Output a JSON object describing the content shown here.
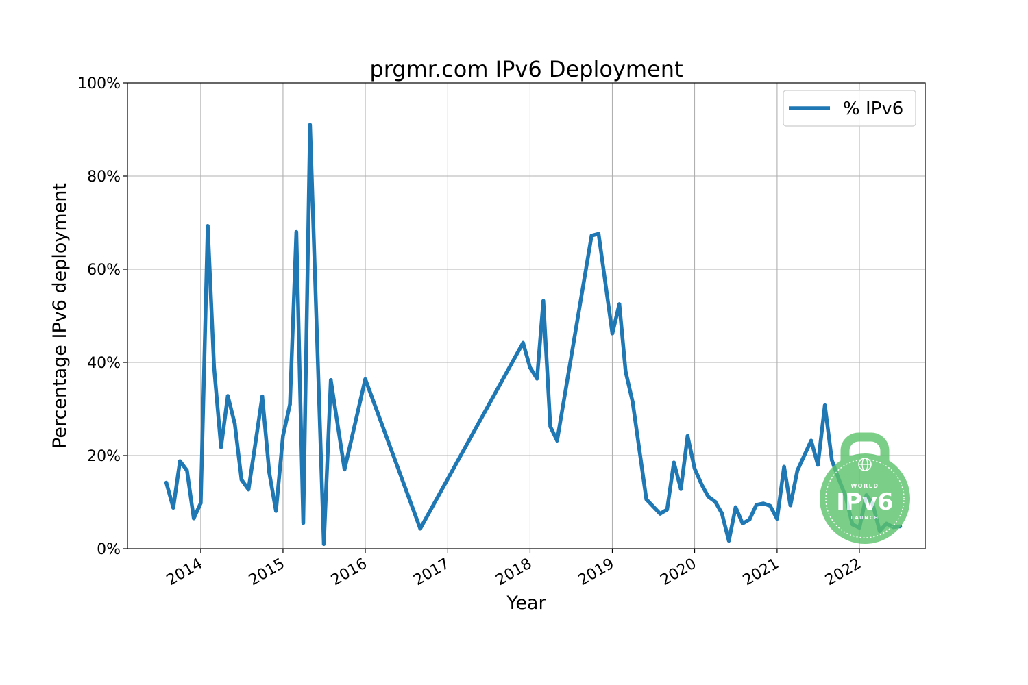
{
  "chart_data": {
    "type": "line",
    "title": "prgmr.com IPv6 Deployment",
    "xlabel": "Year",
    "ylabel": "Percentage IPv6 deployment",
    "x_type": "date",
    "xlim": [
      "2013-02-10",
      "2022-10-20"
    ],
    "ylim": [
      0,
      100
    ],
    "y_unit": "%",
    "x_ticks": [
      "2014-01-01",
      "2015-01-01",
      "2016-01-01",
      "2017-01-01",
      "2018-01-01",
      "2019-01-01",
      "2020-01-01",
      "2021-01-01",
      "2022-01-01"
    ],
    "x_tick_labels": [
      "2014",
      "2015",
      "2016",
      "2017",
      "2018",
      "2019",
      "2020",
      "2021",
      "2022"
    ],
    "y_ticks": [
      0,
      20,
      40,
      60,
      80,
      100
    ],
    "y_tick_labels": [
      "0%",
      "20%",
      "40%",
      "60%",
      "80%",
      "100%"
    ],
    "grid": true,
    "legend_position": "top-right",
    "series": [
      {
        "name": "% IPv6",
        "color": "#1f77b4",
        "x": [
          "2013-08-01",
          "2013-09-01",
          "2013-10-01",
          "2013-11-01",
          "2013-12-01",
          "2014-01-01",
          "2014-02-01",
          "2014-03-01",
          "2014-04-01",
          "2014-05-01",
          "2014-06-01",
          "2014-07-01",
          "2014-08-01",
          "2014-09-01",
          "2014-10-01",
          "2014-11-01",
          "2014-12-01",
          "2015-01-01",
          "2015-02-01",
          "2015-03-01",
          "2015-04-01",
          "2015-05-01",
          "2015-07-01",
          "2015-08-01",
          "2015-10-01",
          "2016-01-01",
          "2016-09-01",
          "2017-12-01",
          "2018-01-01",
          "2018-02-01",
          "2018-03-01",
          "2018-04-01",
          "2018-05-01",
          "2018-10-01",
          "2018-11-01",
          "2019-01-01",
          "2019-02-01",
          "2019-03-01",
          "2019-04-01",
          "2019-06-01",
          "2019-08-01",
          "2019-09-01",
          "2019-10-01",
          "2019-11-01",
          "2019-12-01",
          "2020-01-01",
          "2020-02-01",
          "2020-03-01",
          "2020-04-01",
          "2020-05-01",
          "2020-06-01",
          "2020-07-01",
          "2020-08-01",
          "2020-09-01",
          "2020-10-01",
          "2020-11-01",
          "2020-12-01",
          "2021-01-01",
          "2021-02-01",
          "2021-03-01",
          "2021-04-01",
          "2021-06-01",
          "2021-07-01",
          "2021-08-01",
          "2021-09-01",
          "2021-10-01",
          "2021-11-01",
          "2021-12-01",
          "2022-01-01",
          "2022-02-01",
          "2022-03-01",
          "2022-04-01",
          "2022-05-01",
          "2022-06-01",
          "2022-07-01"
        ],
        "y": [
          14.2,
          8.8,
          18.8,
          16.8,
          6.5,
          9.8,
          69.3,
          39,
          21.8,
          32.8,
          26.8,
          14.8,
          12.7,
          22.8,
          32.7,
          16.3,
          8.1,
          24.2,
          31,
          68,
          5.5,
          91,
          1,
          36.2,
          17,
          36.4,
          4.3,
          44.2,
          38.9,
          36.5,
          53.2,
          26.2,
          23.2,
          67.2,
          67.6,
          46.2,
          52.5,
          38,
          31.5,
          10.6,
          7.5,
          8.4,
          18.5,
          12.8,
          24.2,
          17.2,
          13.8,
          11.2,
          10.1,
          7.6,
          1.7,
          8.9,
          5.4,
          6.3,
          9.4,
          9.7,
          9.2,
          6.4,
          17.6,
          9.3,
          16.8,
          23.2,
          18,
          30.8,
          19,
          15,
          11.2,
          5.2,
          4.5,
          11.5,
          9.6,
          3.8,
          5.4,
          4.6,
          4.8
        ]
      }
    ]
  },
  "watermark": {
    "name": "world-ipv6-launch-logo",
    "color": "#5fc46d",
    "top_text": "WORLD",
    "main_text": "IPv6",
    "bottom_text": "LAUNCH"
  }
}
